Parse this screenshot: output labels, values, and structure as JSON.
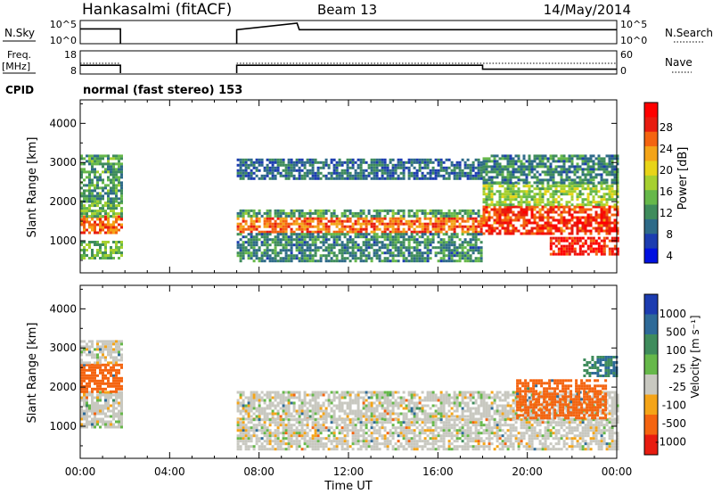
{
  "header": {
    "radar": "Hankasalmi (fitACF)",
    "beam": "Beam 13",
    "date": "14/May/2014"
  },
  "noise_panel": {
    "left_label": "N.Sky",
    "left_ticks": [
      "10^5",
      "10^0"
    ],
    "right_label": "N.Search",
    "right_ticks": [
      "10^5",
      "10^0"
    ]
  },
  "freq_panel": {
    "left_label_line1": "Freq.",
    "left_label_line2": "[MHz]",
    "left_ticks": [
      "18",
      "8"
    ],
    "right_label": "Nave",
    "right_ticks": [
      "60",
      "0"
    ]
  },
  "cpid": {
    "label": "CPID",
    "text": "normal (fast stereo) 153"
  },
  "x_axis": {
    "ticks": [
      "00:00",
      "04:00",
      "08:00",
      "12:00",
      "16:00",
      "20:00",
      "00:00"
    ],
    "label": "Time UT"
  },
  "power_panel": {
    "ylabel": "Slant Range [km]",
    "yticks": [
      "1000",
      "2000",
      "3000",
      "4000"
    ],
    "colorbar_label": "Power [dB]",
    "colorbar_ticks": [
      "28",
      "24",
      "20",
      "16",
      "12",
      "8",
      "4"
    ],
    "colors": [
      "#0010e0",
      "#1c3cb0",
      "#2e6a88",
      "#3f8c5c",
      "#66b84a",
      "#a6d030",
      "#e8d418",
      "#f4a418",
      "#f46410",
      "#e81c10",
      "#ff0000"
    ]
  },
  "velocity_panel": {
    "ylabel": "Slant Range [km]",
    "yticks": [
      "1000",
      "2000",
      "3000",
      "4000"
    ],
    "colorbar_label": "Velocity [m s⁻¹]",
    "colorbar_ticks": [
      "1000",
      "500",
      "100",
      "25",
      "-25",
      "-100",
      "-500",
      "-1000"
    ],
    "colors": [
      "#1c3cb0",
      "#2e6a98",
      "#3f8c5c",
      "#66b84a",
      "#c8c8c0",
      "#f4a418",
      "#f46410",
      "#e81c10"
    ]
  },
  "chart_data": [
    {
      "type": "line",
      "title": "N.Sky / N.Search",
      "xlabel": "",
      "ylabel": "",
      "x_range_hours": [
        0,
        24
      ],
      "y_scale": "log",
      "ylim": [
        "10^0",
        "10^5"
      ],
      "data_gap_hours": [
        1.8,
        7.0
      ],
      "series": [
        {
          "name": "N.Sky",
          "x": [
            0,
            1.8,
            7.0,
            9.7,
            9.8,
            18,
            24
          ],
          "y": [
            2500,
            2500,
            1500,
            100000,
            1500,
            1500,
            1500
          ]
        }
      ]
    },
    {
      "type": "line",
      "title": "Freq. / Nave",
      "xlabel": "",
      "ylabel": "",
      "x_range_hours": [
        0,
        24
      ],
      "data_gap_hours": [
        1.8,
        7.0
      ],
      "series": [
        {
          "name": "Freq.",
          "x": [
            0,
            1.8,
            7.0,
            18.0,
            18.0,
            24
          ],
          "y": [
            12,
            12,
            12,
            12,
            10,
            10
          ]
        },
        {
          "name": "Nave",
          "x": [
            0,
            1.8,
            7.0,
            24
          ],
          "y": [
            30,
            30,
            30,
            30
          ]
        }
      ]
    },
    {
      "type": "heatmap",
      "title": "Power",
      "ylabel": "Slant Range [km]",
      "x_range_hours": [
        0,
        24
      ],
      "ylim": [
        180,
        4600
      ],
      "clim": [
        0,
        30
      ],
      "data_gap_hours": [
        1.8,
        7.0
      ],
      "bands": [
        {
          "t0": 0.0,
          "t1": 1.8,
          "r0": 1200,
          "r1": 1650,
          "level": 24
        },
        {
          "t0": 0.0,
          "t1": 1.8,
          "r0": 1650,
          "r1": 2000,
          "level": 12
        },
        {
          "t0": 0.0,
          "t1": 1.8,
          "r0": 2000,
          "r1": 3200,
          "level": 10
        },
        {
          "t0": 0.0,
          "t1": 1.8,
          "r0": 550,
          "r1": 1000,
          "level": 12
        },
        {
          "t0": 7.0,
          "t1": 18.0,
          "r0": 1200,
          "r1": 1600,
          "level": 24
        },
        {
          "t0": 7.0,
          "t1": 18.0,
          "r0": 1600,
          "r1": 1800,
          "level": 10
        },
        {
          "t0": 7.0,
          "t1": 18.0,
          "r0": 500,
          "r1": 1200,
          "level": 8
        },
        {
          "t0": 7.0,
          "t1": 18.0,
          "r0": 2600,
          "r1": 3100,
          "level": 6
        },
        {
          "t0": 18.0,
          "t1": 24.0,
          "r0": 1200,
          "r1": 1900,
          "level": 26
        },
        {
          "t0": 18.0,
          "t1": 24.0,
          "r0": 1900,
          "r1": 2500,
          "level": 14
        },
        {
          "t0": 18.0,
          "t1": 24.0,
          "r0": 2500,
          "r1": 3200,
          "level": 8
        },
        {
          "t0": 21.0,
          "t1": 24.0,
          "r0": 650,
          "r1": 1100,
          "level": 28
        }
      ]
    },
    {
      "type": "heatmap",
      "title": "Velocity",
      "ylabel": "Slant Range [km]",
      "x_range_hours": [
        0,
        24
      ],
      "ylim": [
        180,
        4600
      ],
      "clim": [
        -1000,
        1000
      ],
      "data_gap_hours": [
        1.8,
        7.0
      ],
      "bands": [
        {
          "t0": 0.0,
          "t1": 1.8,
          "r0": 1000,
          "r1": 1900,
          "value": 0
        },
        {
          "t0": 0.0,
          "t1": 1.8,
          "r0": 1900,
          "r1": 2600,
          "value": -200
        },
        {
          "t0": 0.0,
          "t1": 1.8,
          "r0": 2600,
          "r1": 3200,
          "value": 0
        },
        {
          "t0": 7.0,
          "t1": 24.0,
          "r0": 1200,
          "r1": 1900,
          "value": 0
        },
        {
          "t0": 7.0,
          "t1": 24.0,
          "r0": 400,
          "r1": 1200,
          "value": 0
        },
        {
          "t0": 19.5,
          "t1": 23.5,
          "r0": 1200,
          "r1": 2200,
          "value": -300
        },
        {
          "t0": 22.5,
          "t1": 24.0,
          "r0": 2300,
          "r1": 2800,
          "value": 200
        }
      ]
    }
  ]
}
